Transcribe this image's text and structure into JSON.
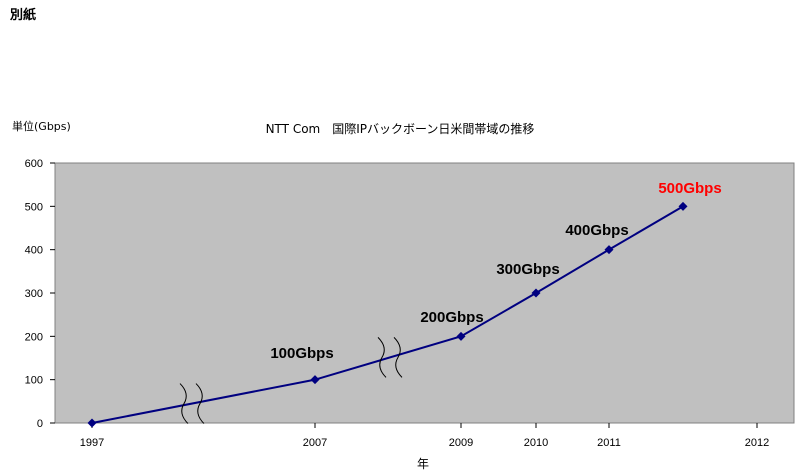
{
  "page": {
    "label": "別紙"
  },
  "chart_data": {
    "type": "line",
    "title": "NTT Com　国際IPバックボーン日米間帯域の推移",
    "ylabel": "単位(Gbps)",
    "xlabel": "年",
    "ylim": [
      0,
      600
    ],
    "y_ticks": [
      "0",
      "100",
      "200",
      "300",
      "400",
      "500",
      "600"
    ],
    "x_tick_labels": [
      "1997",
      "2007",
      "2009",
      "2010",
      "2011",
      "2012"
    ],
    "axis_break": "between 1997 and 2007, and between 2007 and 2009",
    "grid": false,
    "plot_background": "#c0c0c0",
    "line_color": "#000080",
    "highlight_color": "#ff0000",
    "series": [
      {
        "points": [
          {
            "x": "1997",
            "y": 0,
            "label": ""
          },
          {
            "x": "2007",
            "y": 100,
            "label": "100Gbps"
          },
          {
            "x": "2009",
            "y": 200,
            "label": "200Gbps"
          },
          {
            "x": "2010",
            "y": 300,
            "label": "300Gbps"
          },
          {
            "x": "2011",
            "y": 400,
            "label": "400Gbps"
          },
          {
            "x": "2012 (early)",
            "y": 500,
            "label": "500Gbps",
            "highlight": true
          }
        ]
      }
    ]
  }
}
